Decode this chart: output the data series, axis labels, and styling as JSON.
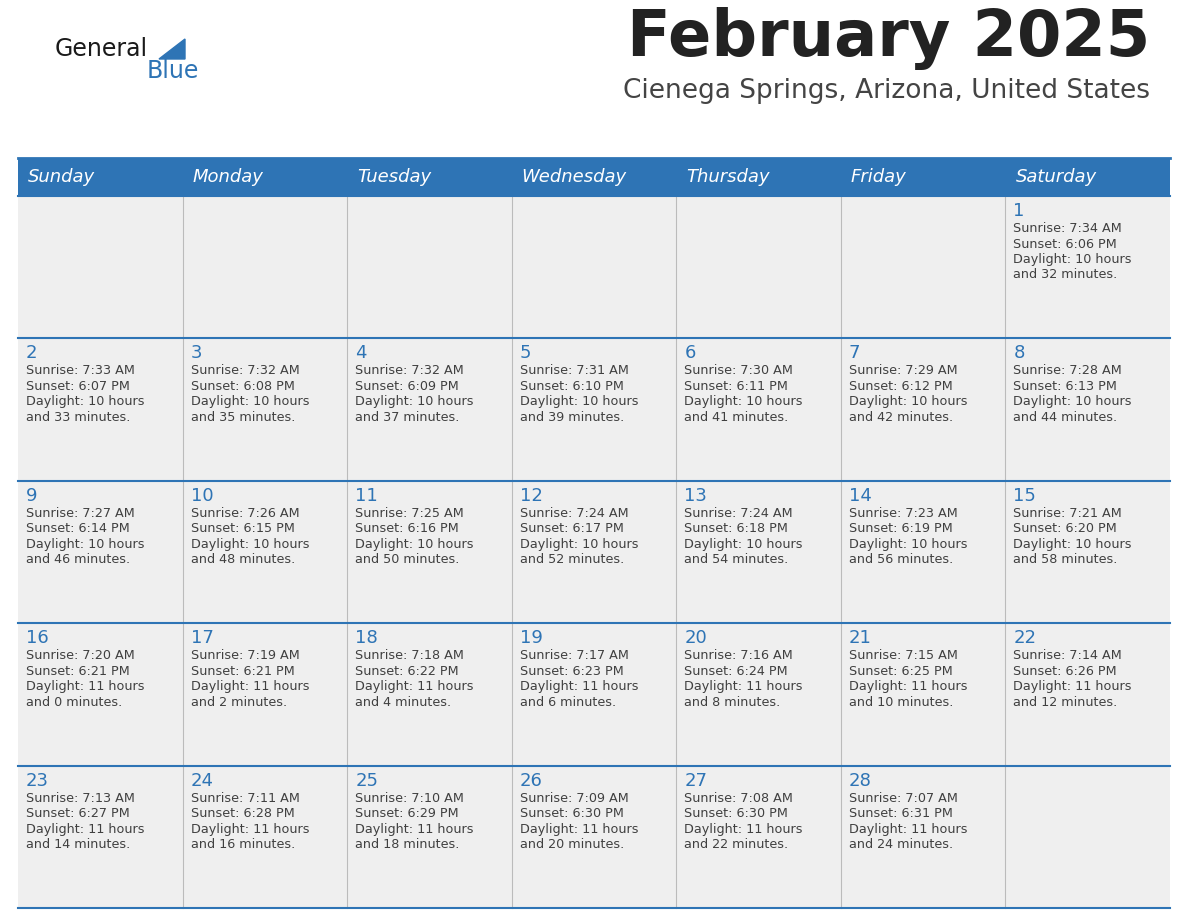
{
  "title": "February 2025",
  "subtitle": "Cienega Springs, Arizona, United States",
  "days_of_week": [
    "Sunday",
    "Monday",
    "Tuesday",
    "Wednesday",
    "Thursday",
    "Friday",
    "Saturday"
  ],
  "header_bg": "#2E74B5",
  "header_text": "#FFFFFF",
  "row_bg": "#EFEFEF",
  "separator_color": "#2E74B5",
  "day_number_color": "#2E74B5",
  "cell_text_color": "#404040",
  "title_color": "#222222",
  "subtitle_color": "#444444",
  "logo_general_color": "#1a1a1a",
  "logo_blue_color": "#2E74B5",
  "calendar_data": [
    {
      "day": 1,
      "col": 6,
      "row": 0,
      "sunrise": "7:34 AM",
      "sunset": "6:06 PM",
      "daylight_h": "10 hours",
      "daylight_m": "32 minutes."
    },
    {
      "day": 2,
      "col": 0,
      "row": 1,
      "sunrise": "7:33 AM",
      "sunset": "6:07 PM",
      "daylight_h": "10 hours",
      "daylight_m": "33 minutes."
    },
    {
      "day": 3,
      "col": 1,
      "row": 1,
      "sunrise": "7:32 AM",
      "sunset": "6:08 PM",
      "daylight_h": "10 hours",
      "daylight_m": "35 minutes."
    },
    {
      "day": 4,
      "col": 2,
      "row": 1,
      "sunrise": "7:32 AM",
      "sunset": "6:09 PM",
      "daylight_h": "10 hours",
      "daylight_m": "37 minutes."
    },
    {
      "day": 5,
      "col": 3,
      "row": 1,
      "sunrise": "7:31 AM",
      "sunset": "6:10 PM",
      "daylight_h": "10 hours",
      "daylight_m": "39 minutes."
    },
    {
      "day": 6,
      "col": 4,
      "row": 1,
      "sunrise": "7:30 AM",
      "sunset": "6:11 PM",
      "daylight_h": "10 hours",
      "daylight_m": "41 minutes."
    },
    {
      "day": 7,
      "col": 5,
      "row": 1,
      "sunrise": "7:29 AM",
      "sunset": "6:12 PM",
      "daylight_h": "10 hours",
      "daylight_m": "42 minutes."
    },
    {
      "day": 8,
      "col": 6,
      "row": 1,
      "sunrise": "7:28 AM",
      "sunset": "6:13 PM",
      "daylight_h": "10 hours",
      "daylight_m": "44 minutes."
    },
    {
      "day": 9,
      "col": 0,
      "row": 2,
      "sunrise": "7:27 AM",
      "sunset": "6:14 PM",
      "daylight_h": "10 hours",
      "daylight_m": "46 minutes."
    },
    {
      "day": 10,
      "col": 1,
      "row": 2,
      "sunrise": "7:26 AM",
      "sunset": "6:15 PM",
      "daylight_h": "10 hours",
      "daylight_m": "48 minutes."
    },
    {
      "day": 11,
      "col": 2,
      "row": 2,
      "sunrise": "7:25 AM",
      "sunset": "6:16 PM",
      "daylight_h": "10 hours",
      "daylight_m": "50 minutes."
    },
    {
      "day": 12,
      "col": 3,
      "row": 2,
      "sunrise": "7:24 AM",
      "sunset": "6:17 PM",
      "daylight_h": "10 hours",
      "daylight_m": "52 minutes."
    },
    {
      "day": 13,
      "col": 4,
      "row": 2,
      "sunrise": "7:24 AM",
      "sunset": "6:18 PM",
      "daylight_h": "10 hours",
      "daylight_m": "54 minutes."
    },
    {
      "day": 14,
      "col": 5,
      "row": 2,
      "sunrise": "7:23 AM",
      "sunset": "6:19 PM",
      "daylight_h": "10 hours",
      "daylight_m": "56 minutes."
    },
    {
      "day": 15,
      "col": 6,
      "row": 2,
      "sunrise": "7:21 AM",
      "sunset": "6:20 PM",
      "daylight_h": "10 hours",
      "daylight_m": "58 minutes."
    },
    {
      "day": 16,
      "col": 0,
      "row": 3,
      "sunrise": "7:20 AM",
      "sunset": "6:21 PM",
      "daylight_h": "11 hours",
      "daylight_m": "0 minutes."
    },
    {
      "day": 17,
      "col": 1,
      "row": 3,
      "sunrise": "7:19 AM",
      "sunset": "6:21 PM",
      "daylight_h": "11 hours",
      "daylight_m": "2 minutes."
    },
    {
      "day": 18,
      "col": 2,
      "row": 3,
      "sunrise": "7:18 AM",
      "sunset": "6:22 PM",
      "daylight_h": "11 hours",
      "daylight_m": "4 minutes."
    },
    {
      "day": 19,
      "col": 3,
      "row": 3,
      "sunrise": "7:17 AM",
      "sunset": "6:23 PM",
      "daylight_h": "11 hours",
      "daylight_m": "6 minutes."
    },
    {
      "day": 20,
      "col": 4,
      "row": 3,
      "sunrise": "7:16 AM",
      "sunset": "6:24 PM",
      "daylight_h": "11 hours",
      "daylight_m": "8 minutes."
    },
    {
      "day": 21,
      "col": 5,
      "row": 3,
      "sunrise": "7:15 AM",
      "sunset": "6:25 PM",
      "daylight_h": "11 hours",
      "daylight_m": "10 minutes."
    },
    {
      "day": 22,
      "col": 6,
      "row": 3,
      "sunrise": "7:14 AM",
      "sunset": "6:26 PM",
      "daylight_h": "11 hours",
      "daylight_m": "12 minutes."
    },
    {
      "day": 23,
      "col": 0,
      "row": 4,
      "sunrise": "7:13 AM",
      "sunset": "6:27 PM",
      "daylight_h": "11 hours",
      "daylight_m": "14 minutes."
    },
    {
      "day": 24,
      "col": 1,
      "row": 4,
      "sunrise": "7:11 AM",
      "sunset": "6:28 PM",
      "daylight_h": "11 hours",
      "daylight_m": "16 minutes."
    },
    {
      "day": 25,
      "col": 2,
      "row": 4,
      "sunrise": "7:10 AM",
      "sunset": "6:29 PM",
      "daylight_h": "11 hours",
      "daylight_m": "18 minutes."
    },
    {
      "day": 26,
      "col": 3,
      "row": 4,
      "sunrise": "7:09 AM",
      "sunset": "6:30 PM",
      "daylight_h": "11 hours",
      "daylight_m": "20 minutes."
    },
    {
      "day": 27,
      "col": 4,
      "row": 4,
      "sunrise": "7:08 AM",
      "sunset": "6:30 PM",
      "daylight_h": "11 hours",
      "daylight_m": "22 minutes."
    },
    {
      "day": 28,
      "col": 5,
      "row": 4,
      "sunrise": "7:07 AM",
      "sunset": "6:31 PM",
      "daylight_h": "11 hours",
      "daylight_m": "24 minutes."
    }
  ]
}
